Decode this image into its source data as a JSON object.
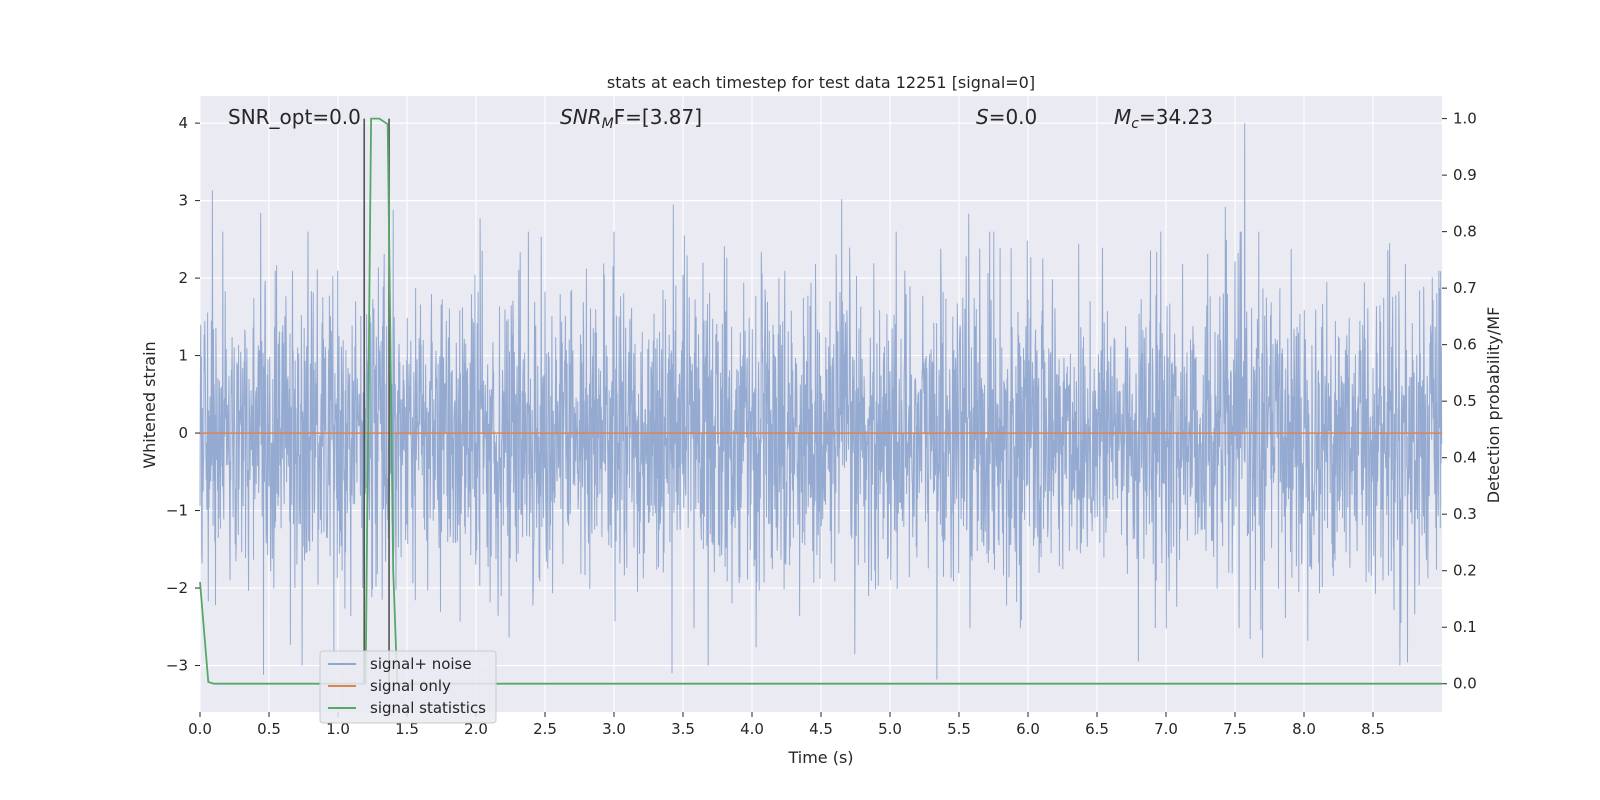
{
  "chart_data": {
    "type": "line",
    "title": "stats at each timestep for test data 12251 [signal=0]",
    "xlabel": "Time (s)",
    "ylabel": "Whitened strain",
    "ylabel_right": "Detection probability/MF",
    "xlim": [
      0.0,
      9.0
    ],
    "ylim": [
      -3.6,
      4.35
    ],
    "ylim_right": [
      -0.05,
      1.04
    ],
    "x_ticks": [
      "0.0",
      "0.5",
      "1.0",
      "1.5",
      "2.0",
      "2.5",
      "3.0",
      "3.5",
      "4.0",
      "4.5",
      "5.0",
      "5.5",
      "6.0",
      "6.5",
      "7.0",
      "7.5",
      "8.0",
      "8.5"
    ],
    "y_ticks": [
      "−3",
      "−2",
      "−1",
      "0",
      "1",
      "2",
      "3",
      "4"
    ],
    "y_tick_values": [
      -3,
      -2,
      -1,
      0,
      1,
      2,
      3,
      4
    ],
    "y_right_ticks": [
      "0.0",
      "0.1",
      "0.2",
      "0.3",
      "0.4",
      "0.5",
      "0.6",
      "0.7",
      "0.8",
      "0.9",
      "1.0"
    ],
    "y_right_tick_values": [
      0.0,
      0.1,
      0.2,
      0.3,
      0.4,
      0.5,
      0.6,
      0.7,
      0.8,
      0.9,
      1.0
    ],
    "grid": true,
    "legend_position": "lower-left",
    "annotations": {
      "snr_opt": "SNR_opt=0.0",
      "snr_mf_main": "SNR",
      "snr_mf_sub": "M",
      "snr_mf_rest": "F=[3.87]",
      "s_italic": "S",
      "s_rest": "=0.0",
      "mc_main": "M",
      "mc_sub": "c",
      "mc_rest": "=34.23"
    },
    "series": [
      {
        "name": "signal+ noise",
        "color": "#8fa6cf",
        "description": "whitened noise, range about -3.2 to 4.0",
        "peaks": [
          [
            0.09,
            3.13
          ],
          [
            0.44,
            2.84
          ],
          [
            1.4,
            2.88
          ],
          [
            2.03,
            2.77
          ],
          [
            3.43,
            2.95
          ],
          [
            4.65,
            3.02
          ],
          [
            5.57,
            2.83
          ],
          [
            7.43,
            2.92
          ],
          [
            7.57,
            4.0
          ],
          [
            8.62,
            2.45
          ]
        ],
        "troughs": [
          [
            0.46,
            -3.12
          ],
          [
            0.97,
            -2.85
          ],
          [
            2.24,
            -2.64
          ],
          [
            3.42,
            -3.1
          ],
          [
            5.34,
            -3.18
          ],
          [
            6.8,
            -2.95
          ],
          [
            7.7,
            -2.9
          ],
          [
            8.75,
            -2.96
          ]
        ]
      },
      {
        "name": "signal only",
        "color": "#dd8452",
        "x": [
          0.0,
          9.0
        ],
        "y": [
          0.0,
          0.0
        ]
      },
      {
        "name": "signal statistics",
        "color": "#55a868",
        "axis": "right",
        "x": [
          0.0,
          0.06,
          0.1,
          1.17,
          1.2,
          1.24,
          1.3,
          1.36,
          1.4,
          1.43,
          9.0
        ],
        "y": [
          0.18,
          0.003,
          0.0,
          0.0,
          0.0,
          1.0,
          1.0,
          0.99,
          0.2,
          0.0,
          0.0
        ]
      }
    ],
    "vlines": [
      {
        "x": 1.19,
        "color": "#555555",
        "y_right": [
          0.0,
          1.0
        ]
      },
      {
        "x": 1.37,
        "color": "#555555",
        "y_right": [
          0.0,
          1.0
        ]
      }
    ]
  }
}
